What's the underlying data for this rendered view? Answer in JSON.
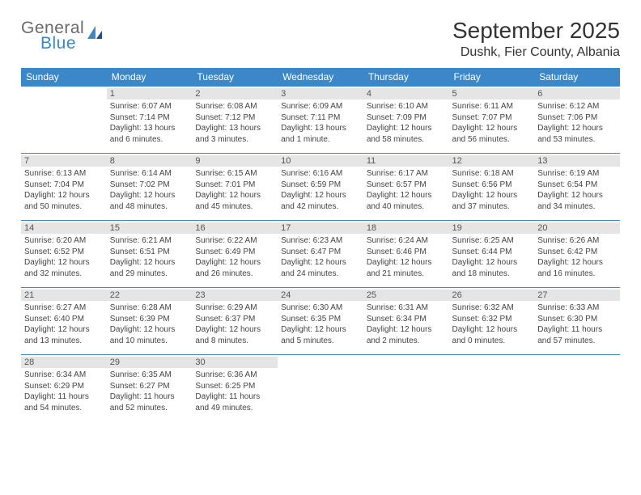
{
  "brand": {
    "line1": "General",
    "line2": "Blue"
  },
  "title": "September 2025",
  "location": "Dushk, Fier County, Albania",
  "colors": {
    "accent": "#3c87c7",
    "daynum_bg": "#e5e5e5",
    "text": "#444444",
    "bg": "#ffffff"
  },
  "day_headers": [
    "Sunday",
    "Monday",
    "Tuesday",
    "Wednesday",
    "Thursday",
    "Friday",
    "Saturday"
  ],
  "weeks": [
    [
      null,
      {
        "n": "1",
        "sr": "6:07 AM",
        "ss": "7:14 PM",
        "dl": "13 hours and 6 minutes."
      },
      {
        "n": "2",
        "sr": "6:08 AM",
        "ss": "7:12 PM",
        "dl": "13 hours and 3 minutes."
      },
      {
        "n": "3",
        "sr": "6:09 AM",
        "ss": "7:11 PM",
        "dl": "13 hours and 1 minute."
      },
      {
        "n": "4",
        "sr": "6:10 AM",
        "ss": "7:09 PM",
        "dl": "12 hours and 58 minutes."
      },
      {
        "n": "5",
        "sr": "6:11 AM",
        "ss": "7:07 PM",
        "dl": "12 hours and 56 minutes."
      },
      {
        "n": "6",
        "sr": "6:12 AM",
        "ss": "7:06 PM",
        "dl": "12 hours and 53 minutes."
      }
    ],
    [
      {
        "n": "7",
        "sr": "6:13 AM",
        "ss": "7:04 PM",
        "dl": "12 hours and 50 minutes."
      },
      {
        "n": "8",
        "sr": "6:14 AM",
        "ss": "7:02 PM",
        "dl": "12 hours and 48 minutes."
      },
      {
        "n": "9",
        "sr": "6:15 AM",
        "ss": "7:01 PM",
        "dl": "12 hours and 45 minutes."
      },
      {
        "n": "10",
        "sr": "6:16 AM",
        "ss": "6:59 PM",
        "dl": "12 hours and 42 minutes."
      },
      {
        "n": "11",
        "sr": "6:17 AM",
        "ss": "6:57 PM",
        "dl": "12 hours and 40 minutes."
      },
      {
        "n": "12",
        "sr": "6:18 AM",
        "ss": "6:56 PM",
        "dl": "12 hours and 37 minutes."
      },
      {
        "n": "13",
        "sr": "6:19 AM",
        "ss": "6:54 PM",
        "dl": "12 hours and 34 minutes."
      }
    ],
    [
      {
        "n": "14",
        "sr": "6:20 AM",
        "ss": "6:52 PM",
        "dl": "12 hours and 32 minutes."
      },
      {
        "n": "15",
        "sr": "6:21 AM",
        "ss": "6:51 PM",
        "dl": "12 hours and 29 minutes."
      },
      {
        "n": "16",
        "sr": "6:22 AM",
        "ss": "6:49 PM",
        "dl": "12 hours and 26 minutes."
      },
      {
        "n": "17",
        "sr": "6:23 AM",
        "ss": "6:47 PM",
        "dl": "12 hours and 24 minutes."
      },
      {
        "n": "18",
        "sr": "6:24 AM",
        "ss": "6:46 PM",
        "dl": "12 hours and 21 minutes."
      },
      {
        "n": "19",
        "sr": "6:25 AM",
        "ss": "6:44 PM",
        "dl": "12 hours and 18 minutes."
      },
      {
        "n": "20",
        "sr": "6:26 AM",
        "ss": "6:42 PM",
        "dl": "12 hours and 16 minutes."
      }
    ],
    [
      {
        "n": "21",
        "sr": "6:27 AM",
        "ss": "6:40 PM",
        "dl": "12 hours and 13 minutes."
      },
      {
        "n": "22",
        "sr": "6:28 AM",
        "ss": "6:39 PM",
        "dl": "12 hours and 10 minutes."
      },
      {
        "n": "23",
        "sr": "6:29 AM",
        "ss": "6:37 PM",
        "dl": "12 hours and 8 minutes."
      },
      {
        "n": "24",
        "sr": "6:30 AM",
        "ss": "6:35 PM",
        "dl": "12 hours and 5 minutes."
      },
      {
        "n": "25",
        "sr": "6:31 AM",
        "ss": "6:34 PM",
        "dl": "12 hours and 2 minutes."
      },
      {
        "n": "26",
        "sr": "6:32 AM",
        "ss": "6:32 PM",
        "dl": "12 hours and 0 minutes."
      },
      {
        "n": "27",
        "sr": "6:33 AM",
        "ss": "6:30 PM",
        "dl": "11 hours and 57 minutes."
      }
    ],
    [
      {
        "n": "28",
        "sr": "6:34 AM",
        "ss": "6:29 PM",
        "dl": "11 hours and 54 minutes."
      },
      {
        "n": "29",
        "sr": "6:35 AM",
        "ss": "6:27 PM",
        "dl": "11 hours and 52 minutes."
      },
      {
        "n": "30",
        "sr": "6:36 AM",
        "ss": "6:25 PM",
        "dl": "11 hours and 49 minutes."
      },
      null,
      null,
      null,
      null
    ]
  ],
  "labels": {
    "sunrise": "Sunrise:",
    "sunset": "Sunset:",
    "daylight": "Daylight:"
  }
}
